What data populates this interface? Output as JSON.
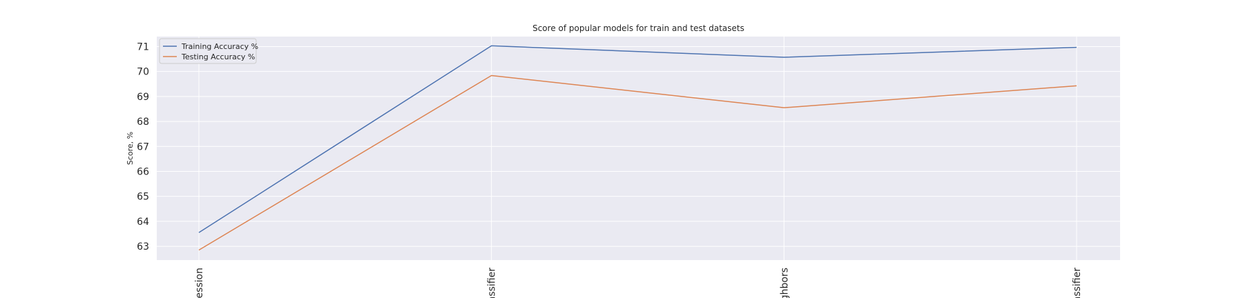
{
  "chart_data": {
    "type": "line",
    "title": "Score of popular models for train and test datasets",
    "xlabel": "",
    "ylabel": "Score, %",
    "categories": [
      "ression",
      "assifier",
      "ghbors",
      "assifier"
    ],
    "ylim": [
      62.45,
      71.4
    ],
    "yticks": [
      63,
      64,
      65,
      66,
      67,
      68,
      69,
      70,
      71
    ],
    "grid": true,
    "legend_position": "top-left",
    "series": [
      {
        "name": "Training Accuracy %",
        "color": "#4c72b0",
        "values": [
          63.55,
          71.03,
          70.57,
          70.97
        ]
      },
      {
        "name": "Testing Accuracy %",
        "color": "#dd8452",
        "values": [
          62.85,
          69.84,
          68.55,
          69.43
        ]
      }
    ],
    "background_color": "#eaeaf2",
    "grid_color": "#ffffff"
  }
}
